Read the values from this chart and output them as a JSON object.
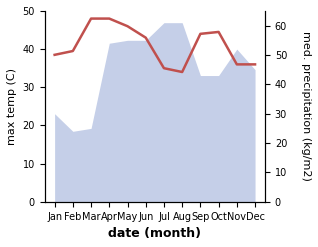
{
  "months": [
    "Jan",
    "Feb",
    "Mar",
    "Apr",
    "May",
    "Jun",
    "Jul",
    "Aug",
    "Sep",
    "Oct",
    "Nov",
    "Dec"
  ],
  "temperature": [
    38.5,
    39.5,
    48.0,
    48.0,
    46.0,
    43.0,
    35.0,
    34.0,
    44.0,
    44.5,
    36.0,
    36.0
  ],
  "precipitation": [
    30,
    24,
    25,
    54,
    55,
    55,
    61,
    61,
    43,
    43,
    52,
    45
  ],
  "temp_color": "#c0504d",
  "precip_fill_color": "#c5cfe8",
  "ylabel_left": "max temp (C)",
  "ylabel_right": "med. precipitation (kg/m2)",
  "xlabel": "date (month)",
  "ylim_left": [
    0,
    50
  ],
  "ylim_right": [
    0,
    65
  ],
  "yticks_left": [
    0,
    10,
    20,
    30,
    40,
    50
  ],
  "yticks_right": [
    0,
    10,
    20,
    30,
    40,
    50,
    60
  ],
  "bg_color": "#ffffff",
  "font_size_labels": 8,
  "font_size_axis": 9
}
